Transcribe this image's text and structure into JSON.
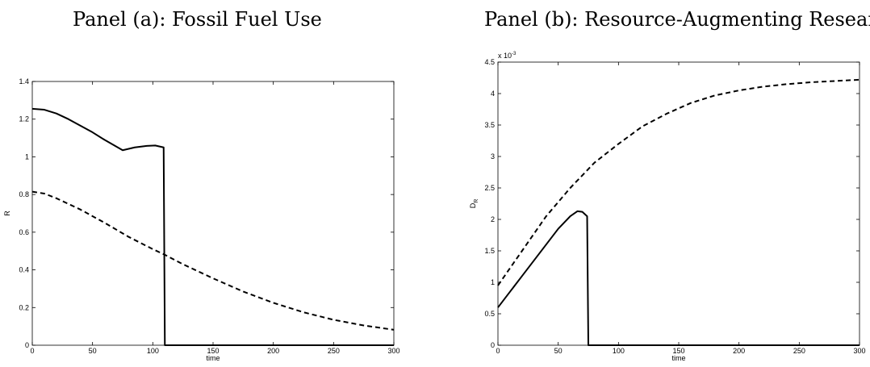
{
  "chart_data": [
    {
      "type": "line",
      "title": "Panel (a): Fossil Fuel Use",
      "xlabel": "time",
      "ylabel": "R",
      "xlim": [
        0,
        300
      ],
      "ylim": [
        0,
        1.4
      ],
      "xticks": [
        "0",
        "50",
        "100",
        "150",
        "200",
        "250",
        "300"
      ],
      "yticks": [
        "0",
        "0.2",
        "0.4",
        "0.6",
        "0.8",
        "1",
        "1.2",
        "1.4"
      ],
      "grid": false,
      "series": [
        {
          "style": "solid",
          "color": "#000000",
          "points": [
            [
              0,
              1.255
            ],
            [
              10,
              1.25
            ],
            [
              20,
              1.23
            ],
            [
              30,
              1.2
            ],
            [
              40,
              1.165
            ],
            [
              50,
              1.13
            ],
            [
              60,
              1.09
            ],
            [
              75,
              1.035
            ],
            [
              85,
              1.05
            ],
            [
              95,
              1.058
            ],
            [
              102,
              1.06
            ],
            [
              109,
              1.05
            ],
            [
              110,
              0.0
            ],
            [
              300,
              0.0
            ]
          ]
        },
        {
          "style": "dashed",
          "color": "#000000",
          "points": [
            [
              0,
              0.815
            ],
            [
              10,
              0.805
            ],
            [
              20,
              0.78
            ],
            [
              40,
              0.72
            ],
            [
              60,
              0.65
            ],
            [
              80,
              0.575
            ],
            [
              100,
              0.51
            ],
            [
              110,
              0.48
            ],
            [
              125,
              0.43
            ],
            [
              150,
              0.355
            ],
            [
              175,
              0.285
            ],
            [
              200,
              0.225
            ],
            [
              225,
              0.175
            ],
            [
              250,
              0.135
            ],
            [
              275,
              0.105
            ],
            [
              300,
              0.082
            ]
          ]
        }
      ]
    },
    {
      "type": "line",
      "title": "Panel (b): Resource-Augmenting Researc",
      "xlabel": "time",
      "ylabel": "D",
      "ylabel_sub": "R",
      "multiplier": "x 10",
      "multiplier_exp": "-3",
      "xlim": [
        0,
        300
      ],
      "ylim": [
        0,
        4.5
      ],
      "xticks": [
        "0",
        "50",
        "100",
        "150",
        "200",
        "250",
        "300"
      ],
      "yticks": [
        "0",
        "0.5",
        "1",
        "1.5",
        "2",
        "2.5",
        "3",
        "3.5",
        "4",
        "4.5"
      ],
      "grid": false,
      "series": [
        {
          "style": "solid",
          "color": "#000000",
          "points": [
            [
              0,
              0.6
            ],
            [
              10,
              0.85
            ],
            [
              20,
              1.1
            ],
            [
              30,
              1.35
            ],
            [
              40,
              1.6
            ],
            [
              50,
              1.85
            ],
            [
              60,
              2.05
            ],
            [
              66,
              2.13
            ],
            [
              70,
              2.12
            ],
            [
              74,
              2.05
            ],
            [
              75,
              0.0
            ],
            [
              300,
              0.0
            ]
          ]
        },
        {
          "style": "dashed",
          "color": "#000000",
          "points": [
            [
              0,
              0.95
            ],
            [
              20,
              1.5
            ],
            [
              40,
              2.05
            ],
            [
              60,
              2.5
            ],
            [
              80,
              2.9
            ],
            [
              100,
              3.2
            ],
            [
              120,
              3.48
            ],
            [
              140,
              3.68
            ],
            [
              160,
              3.85
            ],
            [
              180,
              3.97
            ],
            [
              200,
              4.05
            ],
            [
              220,
              4.11
            ],
            [
              240,
              4.15
            ],
            [
              260,
              4.18
            ],
            [
              280,
              4.2
            ],
            [
              300,
              4.22
            ]
          ]
        }
      ]
    }
  ]
}
